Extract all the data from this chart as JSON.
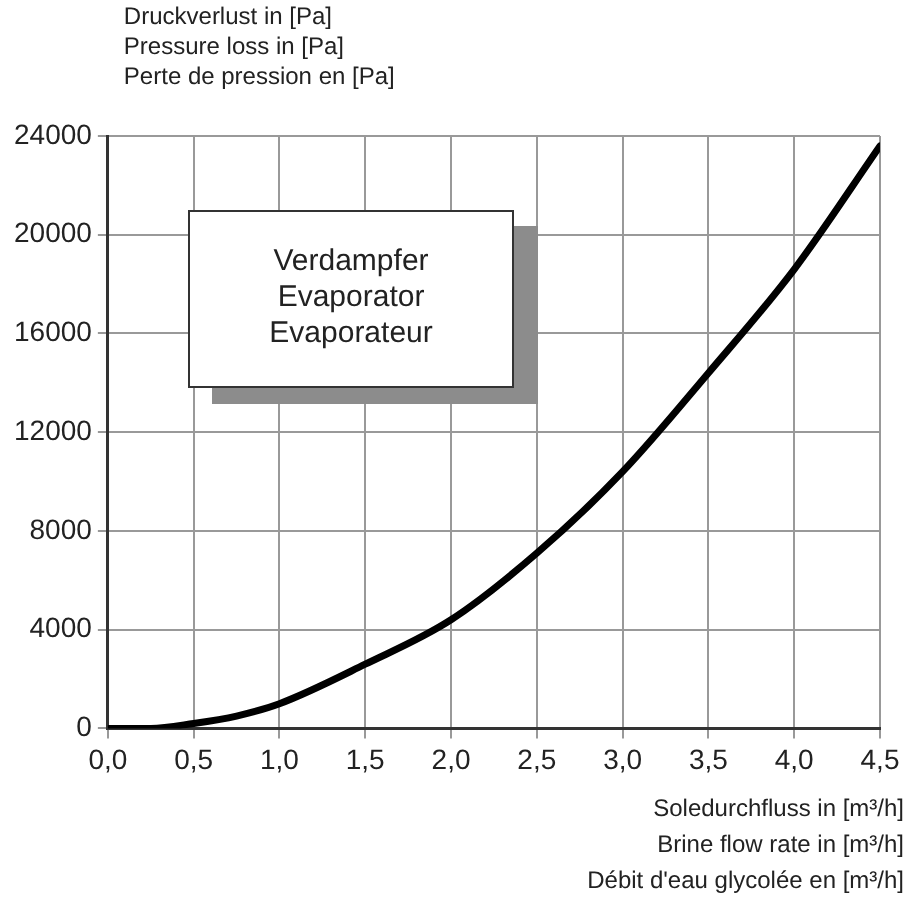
{
  "chart_data": {
    "type": "line",
    "ylabel": "Druckverlust in [Pa]\nPressure loss in [Pa]\nPerte de pression en [Pa]",
    "xlabel": "Soledurchfluss in [m³/h]\nBrine flow rate in [m³/h]\nDébit d'eau glycolée en [m³/h]",
    "annotations": [
      "Verdampfer\nEvaporator\nEvaporateur"
    ],
    "series": [
      {
        "color": "#000000",
        "x": [
          0,
          0.25,
          0.5,
          0.75,
          1.0,
          1.5,
          2.0,
          2.5,
          3.0,
          3.5,
          4.0,
          4.5
        ],
        "values": [
          0,
          0,
          200,
          500,
          1000,
          2600,
          4400,
          7100,
          10400,
          14400,
          18600,
          23600
        ]
      }
    ],
    "xlim": [
      0,
      4.5
    ],
    "xticks": [
      {
        "value": 0,
        "label": "0,0"
      },
      {
        "value": 0.5,
        "label": "0,5"
      },
      {
        "value": 1,
        "label": "1,0"
      },
      {
        "value": 1.5,
        "label": "1,5"
      },
      {
        "value": 2,
        "label": "2,0"
      },
      {
        "value": 2.5,
        "label": "2,5"
      },
      {
        "value": 3,
        "label": "3,0"
      },
      {
        "value": 3.5,
        "label": "3,5"
      },
      {
        "value": 4,
        "label": "4,0"
      },
      {
        "value": 4.5,
        "label": "4,5"
      }
    ],
    "ylim": [
      0,
      24000
    ],
    "yticks": [
      0,
      4000,
      8000,
      12000,
      16000,
      20000,
      24000
    ],
    "grid": true,
    "marker": "none",
    "line_style": "solid"
  }
}
